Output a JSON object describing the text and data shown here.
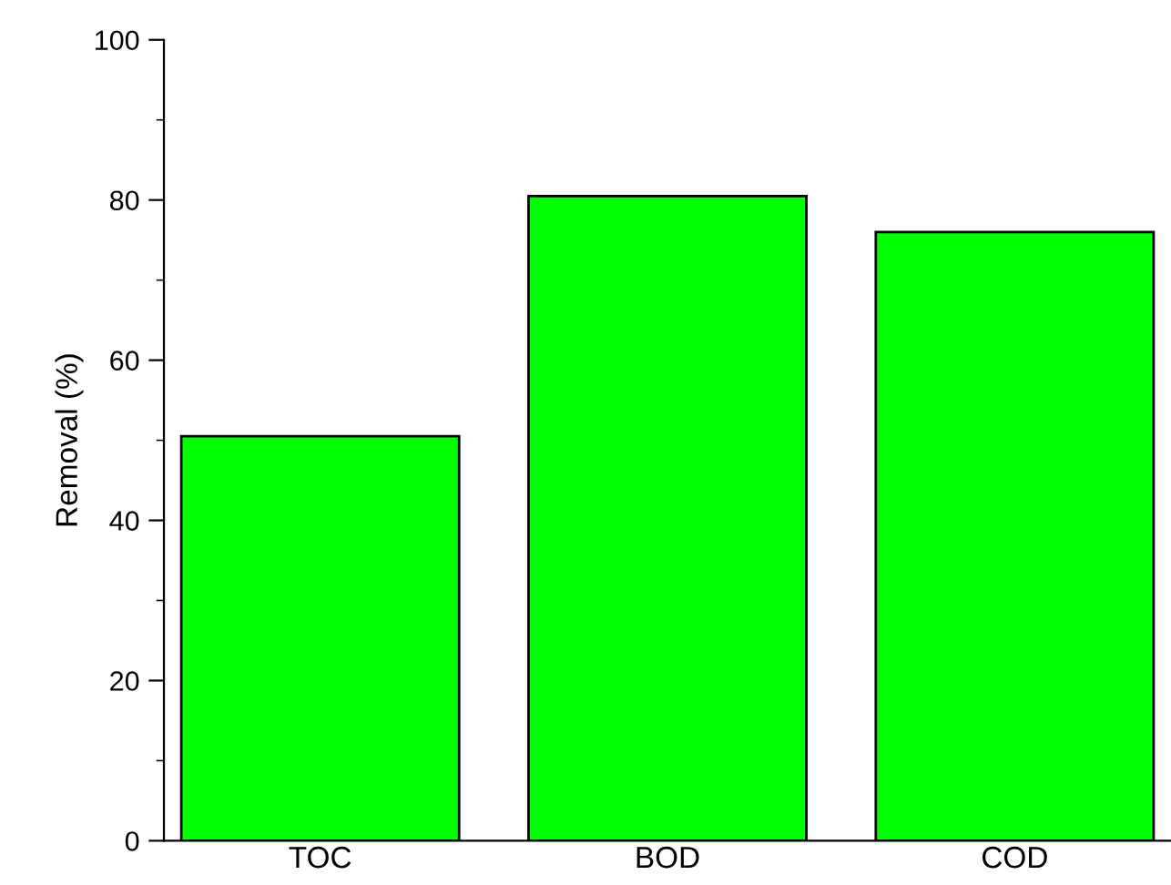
{
  "chart_data": {
    "type": "bar",
    "ylabel": "Removal (%)",
    "categories": [
      "TOC",
      "BOD",
      "COD"
    ],
    "values": [
      50.5,
      80.5,
      76
    ],
    "color": "#00ff00",
    "ylim": [
      0,
      100
    ],
    "yticks": [
      0,
      {
        "value": 10,
        "label": null
      },
      20,
      {
        "value": 30,
        "label": null
      },
      40,
      {
        "value": 50,
        "label": null
      },
      60,
      {
        "value": 70,
        "label": null
      },
      80,
      {
        "value": 90,
        "label": null
      },
      100
    ],
    "grid": false
  }
}
